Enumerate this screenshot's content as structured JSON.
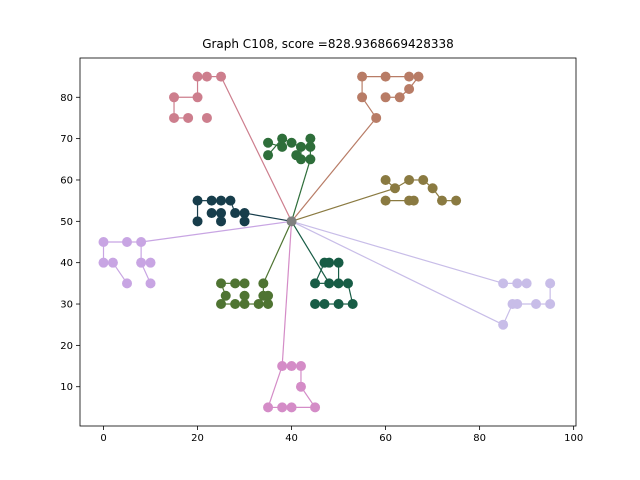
{
  "chart_data": {
    "type": "scatter",
    "title": "Graph C108, score =828.9368669428338",
    "xlim": [
      -5,
      100.5
    ],
    "ylim": [
      0.5,
      89.5
    ],
    "xticks": [
      0,
      20,
      40,
      60,
      80,
      100
    ],
    "yticks": [
      10,
      20,
      30,
      40,
      50,
      60,
      70,
      80
    ],
    "grid": false,
    "legend": "none",
    "center": {
      "x": 40,
      "y": 50,
      "color": "#808080"
    },
    "clusters": [
      {
        "color": "#cd7e8d",
        "points": [
          [
            20,
            85
          ],
          [
            22,
            85
          ],
          [
            25,
            85
          ],
          [
            20,
            80
          ],
          [
            15,
            80
          ],
          [
            15,
            75
          ],
          [
            18,
            75
          ],
          [
            22,
            75
          ]
        ],
        "edges": [
          [
            0,
            1
          ],
          [
            1,
            2
          ],
          [
            0,
            3
          ],
          [
            3,
            4
          ],
          [
            4,
            5
          ],
          [
            5,
            6
          ]
        ],
        "hub": 2
      },
      {
        "color": "#b87c66",
        "points": [
          [
            55,
            85
          ],
          [
            60,
            85
          ],
          [
            65,
            85
          ],
          [
            67,
            85
          ],
          [
            65,
            82
          ],
          [
            63,
            80
          ],
          [
            60,
            80
          ],
          [
            58,
            75
          ],
          [
            55,
            80
          ]
        ],
        "edges": [
          [
            0,
            1
          ],
          [
            1,
            2
          ],
          [
            2,
            3
          ],
          [
            3,
            4
          ],
          [
            4,
            5
          ],
          [
            5,
            6
          ],
          [
            0,
            8
          ],
          [
            8,
            7
          ]
        ],
        "hub": 7
      },
      {
        "color": "#2e6e3a",
        "points": [
          [
            38,
            70
          ],
          [
            40,
            69
          ],
          [
            42,
            68
          ],
          [
            44,
            70
          ],
          [
            44,
            68
          ],
          [
            44,
            65
          ],
          [
            42,
            65
          ],
          [
            41,
            66
          ],
          [
            38,
            68
          ],
          [
            35,
            69
          ],
          [
            35,
            66
          ]
        ],
        "edges": [
          [
            0,
            1
          ],
          [
            1,
            2
          ],
          [
            2,
            6
          ],
          [
            6,
            7
          ],
          [
            3,
            4
          ],
          [
            4,
            5
          ],
          [
            9,
            8
          ],
          [
            8,
            0
          ],
          [
            0,
            10
          ]
        ],
        "hub": 5
      },
      {
        "color": "#8a7a41",
        "points": [
          [
            60,
            60
          ],
          [
            62,
            58
          ],
          [
            65,
            60
          ],
          [
            68,
            60
          ],
          [
            70,
            58
          ],
          [
            72,
            55
          ],
          [
            75,
            55
          ],
          [
            65,
            55
          ],
          [
            66,
            55
          ],
          [
            60,
            55
          ]
        ],
        "edges": [
          [
            0,
            1
          ],
          [
            1,
            2
          ],
          [
            2,
            3
          ],
          [
            3,
            4
          ],
          [
            4,
            5
          ],
          [
            5,
            6
          ],
          [
            9,
            7
          ],
          [
            7,
            8
          ]
        ],
        "hub": 1
      },
      {
        "color": "#173d4b",
        "points": [
          [
            20,
            55
          ],
          [
            23,
            55
          ],
          [
            25,
            55
          ],
          [
            27,
            55
          ],
          [
            23,
            52
          ],
          [
            25,
            52
          ],
          [
            28,
            52
          ],
          [
            30,
            52
          ],
          [
            30,
            50
          ],
          [
            25,
            50
          ],
          [
            20,
            50
          ]
        ],
        "edges": [
          [
            0,
            1
          ],
          [
            1,
            2
          ],
          [
            2,
            3
          ],
          [
            0,
            10
          ],
          [
            4,
            5
          ],
          [
            5,
            9
          ],
          [
            6,
            7
          ],
          [
            7,
            8
          ],
          [
            3,
            6
          ]
        ],
        "hub": 7
      },
      {
        "color": "#c8a5e3",
        "points": [
          [
            0,
            45
          ],
          [
            5,
            45
          ],
          [
            8,
            45
          ],
          [
            0,
            40
          ],
          [
            2,
            40
          ],
          [
            5,
            35
          ],
          [
            8,
            40
          ],
          [
            10,
            40
          ],
          [
            10,
            35
          ]
        ],
        "edges": [
          [
            0,
            1
          ],
          [
            1,
            2
          ],
          [
            0,
            3
          ],
          [
            3,
            4
          ],
          [
            4,
            5
          ],
          [
            2,
            6
          ],
          [
            6,
            7
          ],
          [
            6,
            8
          ]
        ],
        "hub": 2
      },
      {
        "color": "#175c45",
        "points": [
          [
            47,
            40
          ],
          [
            48,
            40
          ],
          [
            50,
            40
          ],
          [
            45,
            35
          ],
          [
            48,
            35
          ],
          [
            50,
            35
          ],
          [
            52,
            35
          ],
          [
            45,
            30
          ],
          [
            47,
            30
          ],
          [
            50,
            30
          ],
          [
            53,
            30
          ]
        ],
        "edges": [
          [
            0,
            1
          ],
          [
            1,
            2
          ],
          [
            3,
            4
          ],
          [
            5,
            6
          ],
          [
            6,
            10
          ],
          [
            7,
            8
          ],
          [
            8,
            9
          ],
          [
            9,
            10
          ],
          [
            0,
            3
          ],
          [
            2,
            5
          ]
        ],
        "hub": 4
      },
      {
        "color": "#4f7432",
        "points": [
          [
            25,
            35
          ],
          [
            28,
            35
          ],
          [
            30,
            35
          ],
          [
            34,
            35
          ],
          [
            26,
            32
          ],
          [
            30,
            32
          ],
          [
            34,
            32
          ],
          [
            25,
            30
          ],
          [
            28,
            30
          ],
          [
            30,
            30
          ],
          [
            33,
            30
          ],
          [
            35,
            30
          ],
          [
            35,
            32
          ]
        ],
        "edges": [
          [
            0,
            1
          ],
          [
            1,
            2
          ],
          [
            0,
            4
          ],
          [
            4,
            7
          ],
          [
            7,
            8
          ],
          [
            8,
            9
          ],
          [
            9,
            10
          ],
          [
            10,
            11
          ],
          [
            11,
            12
          ],
          [
            12,
            6
          ],
          [
            6,
            3
          ],
          [
            5,
            9
          ]
        ],
        "hub": 3
      },
      {
        "color": "#c8bde8",
        "points": [
          [
            85,
            35
          ],
          [
            88,
            35
          ],
          [
            90,
            35
          ],
          [
            95,
            35
          ],
          [
            87,
            30
          ],
          [
            88,
            30
          ],
          [
            92,
            30
          ],
          [
            95,
            30
          ],
          [
            85,
            25
          ]
        ],
        "edges": [
          [
            0,
            1
          ],
          [
            1,
            2
          ],
          [
            3,
            7
          ],
          [
            7,
            6
          ],
          [
            6,
            5
          ],
          [
            5,
            4
          ],
          [
            4,
            8
          ]
        ],
        "hub": 0,
        "hub2": 8
      },
      {
        "color": "#d48cc7",
        "points": [
          [
            38,
            15
          ],
          [
            40,
            15
          ],
          [
            42,
            15
          ],
          [
            42,
            10
          ],
          [
            45,
            5
          ],
          [
            40,
            5
          ],
          [
            38,
            5
          ],
          [
            35,
            5
          ]
        ],
        "edges": [
          [
            0,
            1
          ],
          [
            1,
            2
          ],
          [
            2,
            3
          ],
          [
            3,
            4
          ],
          [
            0,
            7
          ],
          [
            7,
            6
          ],
          [
            6,
            5
          ],
          [
            5,
            4
          ]
        ],
        "hub": 0
      }
    ]
  }
}
